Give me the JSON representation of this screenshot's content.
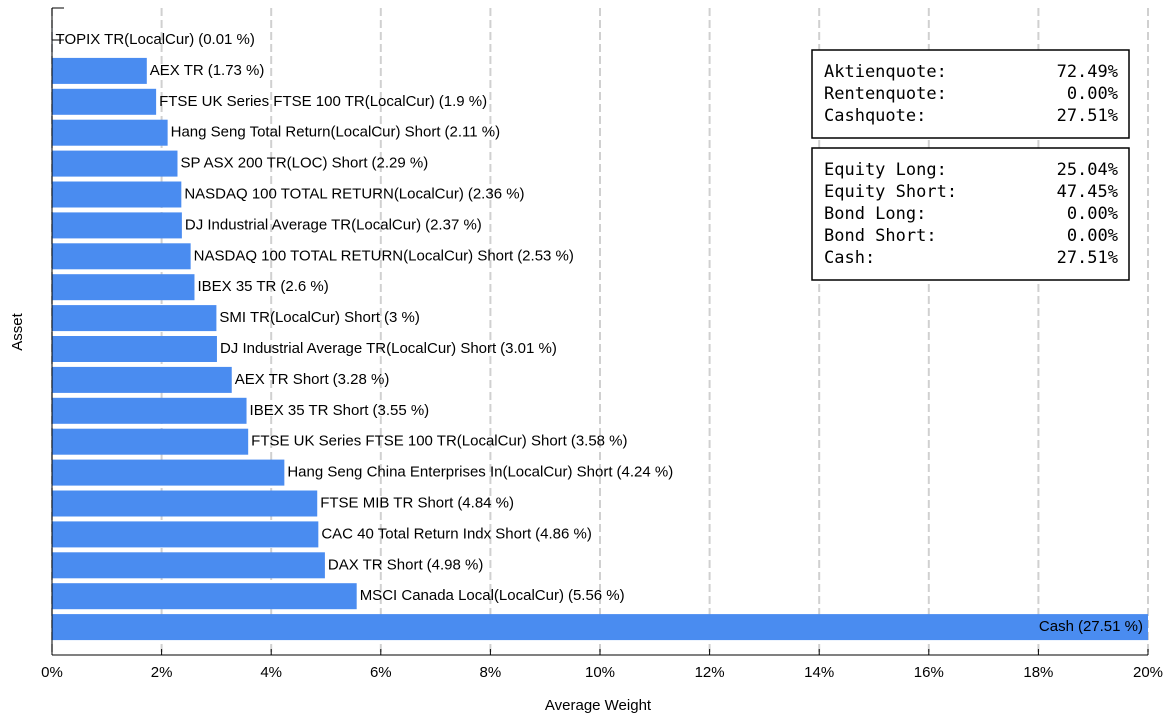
{
  "chart_data": {
    "type": "barh",
    "xlabel": "Average Weight",
    "ylabel": "Asset",
    "categories": [
      "TOPIX TR(LocalCur)",
      "AEX TR",
      "FTSE UK Series FTSE 100 TR(LocalCur)",
      "Hang Seng Total Return(LocalCur) Short",
      "SP ASX 200 TR(LOC) Short",
      "NASDAQ 100 TOTAL RETURN(LocalCur)",
      "DJ Industrial Average TR(LocalCur)",
      "NASDAQ 100 TOTAL RETURN(LocalCur) Short",
      "IBEX 35 TR",
      "SMI TR(LocalCur) Short",
      "DJ Industrial Average TR(LocalCur) Short",
      "AEX TR Short",
      "IBEX 35 TR Short",
      "FTSE UK Series FTSE 100 TR(LocalCur) Short",
      "Hang Seng China Enterprises In(LocalCur) Short",
      "FTSE MIB TR Short",
      "CAC 40 Total Return Indx Short",
      "DAX TR Short",
      "MSCI Canada Local(LocalCur)",
      "Cash"
    ],
    "values": [
      0.01,
      1.73,
      1.9,
      2.11,
      2.29,
      2.36,
      2.37,
      2.53,
      2.6,
      3,
      3.01,
      3.28,
      3.55,
      3.58,
      4.24,
      4.84,
      4.86,
      4.98,
      5.56,
      27.51
    ],
    "value_labels": [
      "(0.01 %)",
      "(1.73 %)",
      "(1.9 %)",
      "(2.11 %)",
      "(2.29 %)",
      "(2.36 %)",
      "(2.37 %)",
      "(2.53 %)",
      "(2.6 %)",
      "(3 %)",
      "(3.01 %)",
      "(3.28 %)",
      "(3.55 %)",
      "(3.58 %)",
      "(4.24 %)",
      "(4.84 %)",
      "(4.86 %)",
      "(4.98 %)",
      "(5.56 %)",
      "(27.51 %)"
    ],
    "color": "#4a8cf0",
    "xlim": [
      0,
      20
    ],
    "xticks": [
      {
        "value": 0,
        "label": "0%"
      },
      {
        "value": 2,
        "label": "2%"
      },
      {
        "value": 4,
        "label": "4%"
      },
      {
        "value": 6,
        "label": "6%"
      },
      {
        "value": 8,
        "label": "8%"
      },
      {
        "value": 10,
        "label": "10%"
      },
      {
        "value": 12,
        "label": "12%"
      },
      {
        "value": 14,
        "label": "14%"
      },
      {
        "value": 16,
        "label": "16%"
      },
      {
        "value": 18,
        "label": "18%"
      },
      {
        "value": 20,
        "label": "20%"
      }
    ],
    "grid": true,
    "info_boxes": [
      [
        {
          "label": "Aktienquote:",
          "value": "72.49%"
        },
        {
          "label": "Rentenquote:",
          "value": "0.00%"
        },
        {
          "label": "Cashquote:",
          "value": "27.51%"
        }
      ],
      [
        {
          "label": "Equity Long:",
          "value": "25.04%"
        },
        {
          "label": "Equity Short:",
          "value": "47.45%"
        },
        {
          "label": "Bond Long:",
          "value": "0.00%"
        },
        {
          "label": "Bond Short:",
          "value": "0.00%"
        },
        {
          "label": "Cash:",
          "value": "27.51%"
        }
      ]
    ]
  }
}
